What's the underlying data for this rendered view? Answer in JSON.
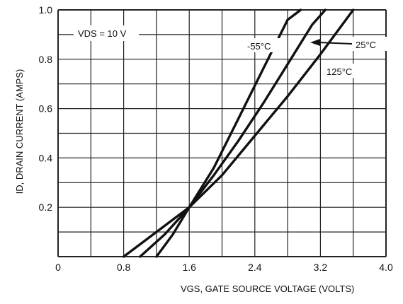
{
  "chart_data": {
    "type": "line",
    "title": "",
    "xlabel": "VGS, GATE SOURCE VOLTAGE (VOLTS)",
    "ylabel": "ID, DRAIN CURRENT (AMPS)",
    "xlim": [
      0,
      4.0
    ],
    "ylim": [
      0,
      1.0
    ],
    "grid": true,
    "x_ticks": [
      "0",
      "0.8",
      "1.6",
      "2.4",
      "3.2",
      "4.0"
    ],
    "y_ticks": [
      "0.2",
      "0.4",
      "0.6",
      "0.8",
      "1.0"
    ],
    "annotations": {
      "condition": "VDS = 10 V"
    },
    "series": [
      {
        "name": "-55°C",
        "x": [
          1.2,
          1.4,
          1.6,
          1.9,
          2.2,
          2.5,
          2.8,
          2.96
        ],
        "y": [
          0.0,
          0.09,
          0.2,
          0.36,
          0.56,
          0.76,
          0.96,
          1.0
        ]
      },
      {
        "name": "25°C",
        "x": [
          1.0,
          1.3,
          1.6,
          1.9,
          2.2,
          2.5,
          2.8,
          3.1,
          3.26
        ],
        "y": [
          0.0,
          0.09,
          0.2,
          0.33,
          0.47,
          0.62,
          0.78,
          0.94,
          1.0
        ]
      },
      {
        "name": "125°C",
        "x": [
          0.8,
          1.2,
          1.6,
          2.0,
          2.4,
          2.8,
          3.2,
          3.6
        ],
        "y": [
          0.0,
          0.1,
          0.2,
          0.33,
          0.49,
          0.65,
          0.82,
          1.0
        ]
      }
    ],
    "colors": {
      "line": "#111111",
      "grid": "#222222",
      "background": "#ffffff"
    }
  }
}
